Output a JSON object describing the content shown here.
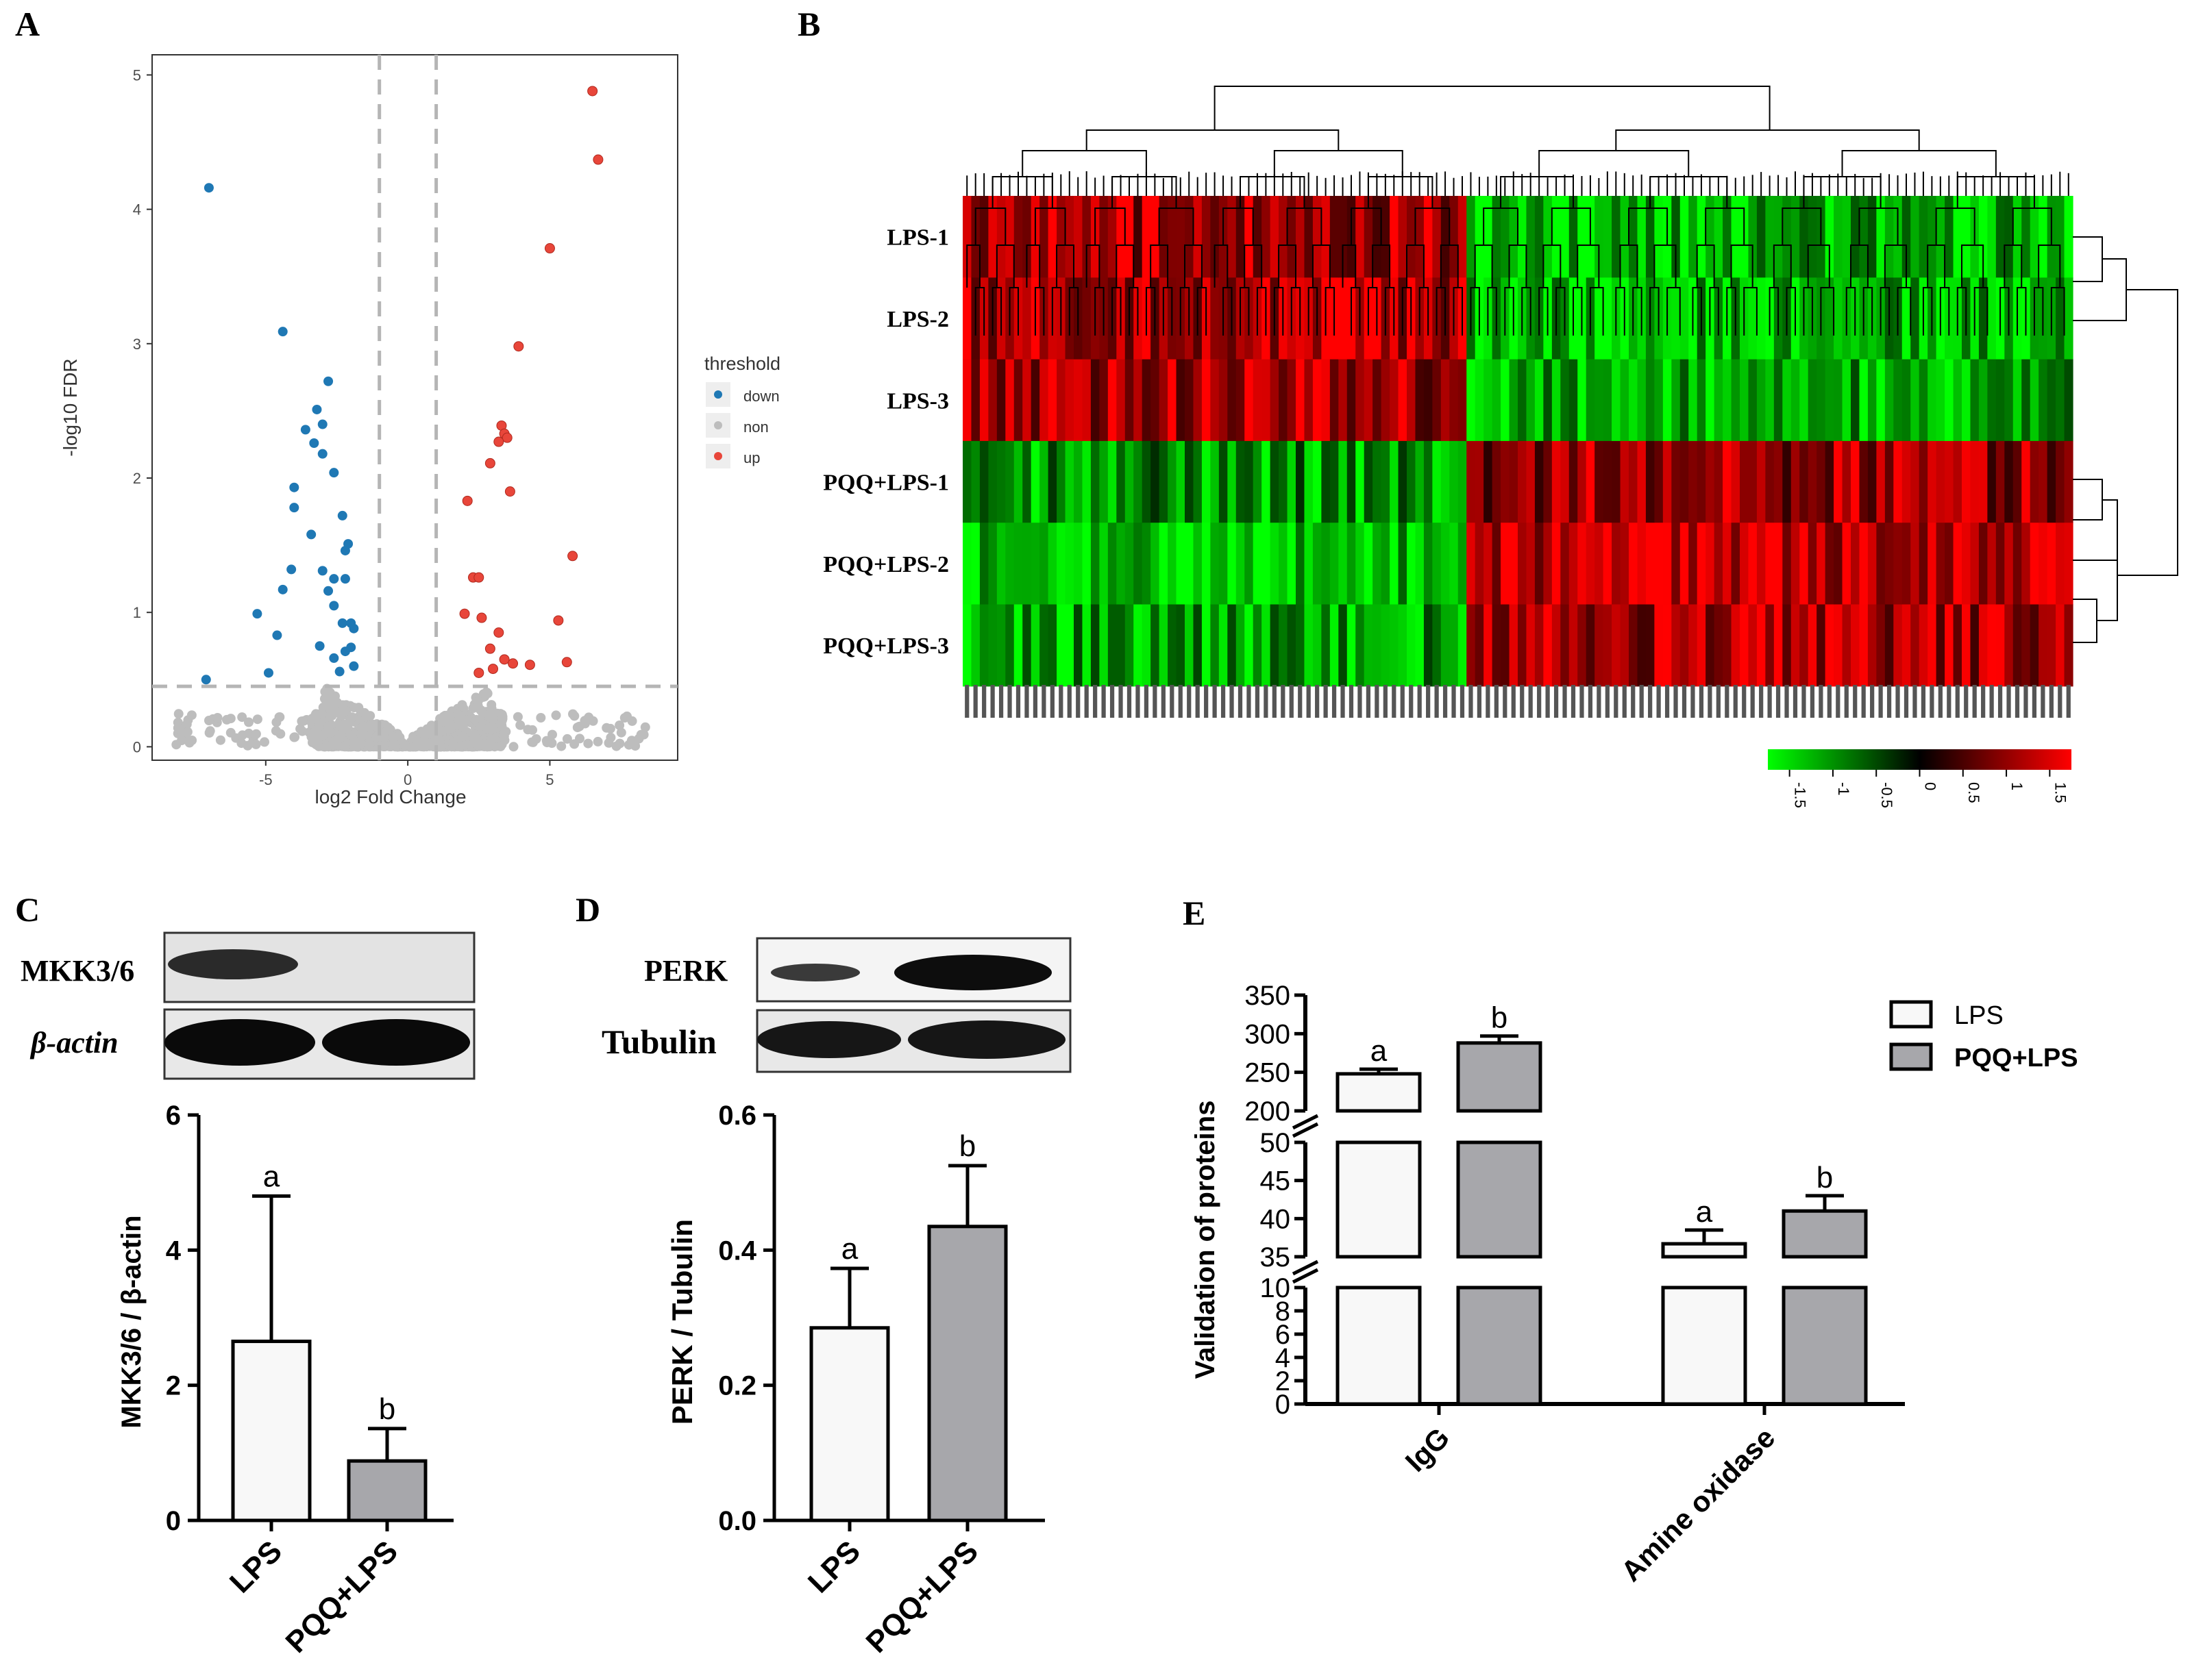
{
  "panels": {
    "A": {
      "label": "A",
      "chart_data": {
        "type": "scatter",
        "xlabel": "log2 Fold Change",
        "ylabel": "-log10 FDR",
        "xlim": [
          -9,
          9.5
        ],
        "ylim": [
          -0.1,
          5.15
        ],
        "x_ticks": [
          -5,
          0,
          5
        ],
        "y_ticks": [
          0,
          1,
          2,
          3,
          4,
          5
        ],
        "fc_threshold": 1,
        "fdr_threshold": 0.45,
        "legend": {
          "title": "threshold",
          "position": "right",
          "items": [
            {
              "name": "down",
              "color": "#1f78b4"
            },
            {
              "name": "non",
              "color": "#bdbdbd"
            },
            {
              "name": "up",
              "color": "#e8463a"
            }
          ]
        },
        "colors": {
          "down": "#1f78b4",
          "non": "#bdbdbd",
          "up": "#e8463a"
        },
        "up_points": [
          [
            6.5,
            4.88
          ],
          [
            6.7,
            4.37
          ],
          [
            5.0,
            3.71
          ],
          [
            3.9,
            2.98
          ],
          [
            3.3,
            2.39
          ],
          [
            3.4,
            2.33
          ],
          [
            3.5,
            2.3
          ],
          [
            3.2,
            2.27
          ],
          [
            2.9,
            2.11
          ],
          [
            3.6,
            1.9
          ],
          [
            2.1,
            1.83
          ],
          [
            5.8,
            1.42
          ],
          [
            2.3,
            1.26
          ],
          [
            2.5,
            1.26
          ],
          [
            5.3,
            0.94
          ],
          [
            5.6,
            0.63
          ],
          [
            2.0,
            0.99
          ],
          [
            2.6,
            0.96
          ],
          [
            3.2,
            0.85
          ],
          [
            2.9,
            0.73
          ],
          [
            3.4,
            0.65
          ],
          [
            3.7,
            0.62
          ],
          [
            3.0,
            0.58
          ],
          [
            4.3,
            0.61
          ],
          [
            2.5,
            0.55
          ]
        ],
        "down_points": [
          [
            -7.0,
            4.16
          ],
          [
            -4.4,
            3.09
          ],
          [
            -2.8,
            2.72
          ],
          [
            -3.2,
            2.51
          ],
          [
            -3.0,
            2.4
          ],
          [
            -3.6,
            2.36
          ],
          [
            -3.3,
            2.26
          ],
          [
            -3.0,
            2.18
          ],
          [
            -2.6,
            2.04
          ],
          [
            -4.0,
            1.93
          ],
          [
            -4.0,
            1.78
          ],
          [
            -2.3,
            1.72
          ],
          [
            -3.4,
            1.58
          ],
          [
            -2.1,
            1.51
          ],
          [
            -2.2,
            1.46
          ],
          [
            -3.0,
            1.31
          ],
          [
            -4.1,
            1.32
          ],
          [
            -2.6,
            1.25
          ],
          [
            -2.2,
            1.25
          ],
          [
            -4.4,
            1.17
          ],
          [
            -2.8,
            1.16
          ],
          [
            -2.6,
            1.05
          ],
          [
            -5.3,
            0.99
          ],
          [
            -4.6,
            0.83
          ],
          [
            -2.3,
            0.92
          ],
          [
            -2.0,
            0.92
          ],
          [
            -1.9,
            0.88
          ],
          [
            -3.1,
            0.75
          ],
          [
            -2.0,
            0.74
          ],
          [
            -2.2,
            0.71
          ],
          [
            -4.9,
            0.55
          ],
          [
            -7.1,
            0.5
          ],
          [
            -2.6,
            0.66
          ],
          [
            -1.9,
            0.6
          ],
          [
            -2.4,
            0.56
          ]
        ]
      }
    },
    "B": {
      "label": "B",
      "chart_data": {
        "type": "heatmap",
        "rows": [
          "LPS-1",
          "LPS-2",
          "LPS-3",
          "PQQ+LPS-1",
          "PQQ+LPS-2",
          "PQQ+LPS-3"
        ],
        "column_count": 130,
        "color_scale": {
          "low": "#00ff00",
          "mid": "#000000",
          "high": "#ff0000",
          "ticks": [
            -1.5,
            -1,
            -0.5,
            0,
            0.5,
            1,
            1.5
          ]
        },
        "clusters": [
          {
            "columns": 59,
            "rows_mean": [
              1.0,
              1.1,
              1.0,
              -0.9,
              -1.2,
              -1.0
            ]
          },
          {
            "columns": 71,
            "rows_mean": [
              -1.1,
              -1.1,
              -1.0,
              0.9,
              1.2,
              1.0
            ]
          }
        ]
      }
    },
    "C": {
      "label": "C",
      "blot_labels": [
        "MKK3/6",
        "β-actin"
      ],
      "chart_data": {
        "type": "bar",
        "categories": [
          "LPS",
          "PQQ+LPS"
        ],
        "values": [
          2.65,
          0.88
        ],
        "errors": [
          2.15,
          0.48
        ],
        "letters": [
          "a",
          "b"
        ],
        "ylabel": "MKK3/6 / β-actin",
        "ylim": [
          0,
          6
        ],
        "y_ticks": [
          0,
          2,
          4,
          6
        ],
        "colors": [
          "#f8f8f8",
          "#a7a7ab"
        ]
      }
    },
    "D": {
      "label": "D",
      "blot_labels": [
        "PERK",
        "Tubulin"
      ],
      "chart_data": {
        "type": "bar",
        "categories": [
          "LPS",
          "PQQ+LPS"
        ],
        "values": [
          0.285,
          0.435
        ],
        "errors": [
          0.088,
          0.09
        ],
        "letters": [
          "a",
          "b"
        ],
        "ylabel": "PERK / Tubulin",
        "ylim": [
          0,
          0.6
        ],
        "y_ticks": [
          "0.0",
          "0.2",
          "0.4",
          "0.6"
        ],
        "colors": [
          "#f8f8f8",
          "#a7a7ab"
        ]
      }
    },
    "E": {
      "label": "E",
      "chart_data": {
        "type": "bar",
        "categories": [
          "IgG",
          "Amine oxidase"
        ],
        "series": [
          {
            "name": "LPS",
            "values": [
              248,
              36.7
            ],
            "errors": [
              6,
              1.8
            ],
            "letters": [
              "a",
              "a"
            ],
            "color": "#f8f8f8"
          },
          {
            "name": "PQQ+LPS",
            "values": [
              288,
              41.0
            ],
            "errors": [
              9,
              2.0
            ],
            "letters": [
              "b",
              "b"
            ],
            "color": "#a7a7ab"
          }
        ],
        "ylabel": "Validation of proteins",
        "broken_axis_segments": [
          {
            "range": [
              0,
              10
            ],
            "ticks": [
              "0",
              "2",
              "4",
              "6",
              "8",
              "10"
            ]
          },
          {
            "range": [
              35,
              50
            ],
            "ticks": [
              "35",
              "40",
              "45",
              "50"
            ]
          },
          {
            "range": [
              200,
              350
            ],
            "ticks": [
              "200",
              "250",
              "300",
              "350"
            ]
          }
        ],
        "legend": {
          "position": "top-right"
        }
      }
    }
  }
}
